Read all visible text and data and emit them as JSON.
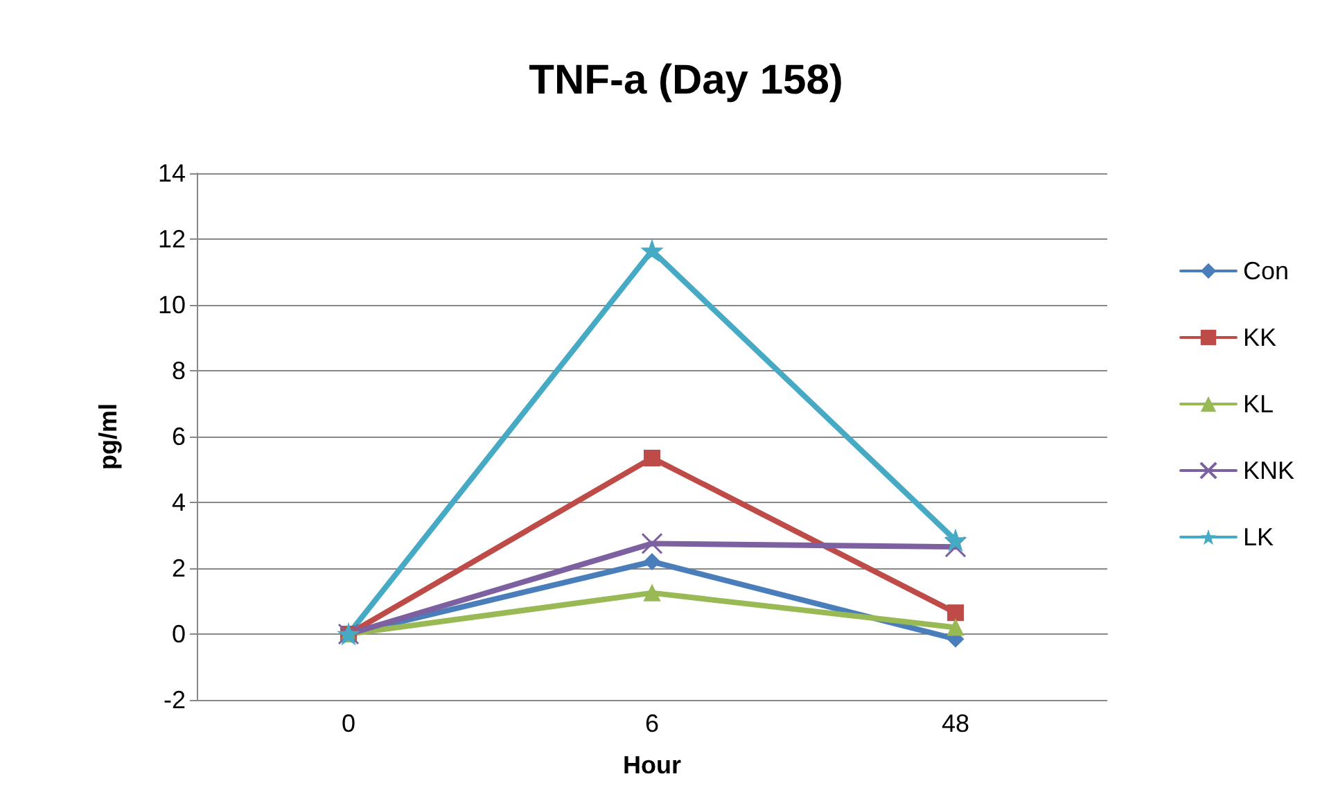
{
  "chart_data": {
    "type": "line",
    "title": "TNF-a (Day 158)",
    "xlabel": "Hour",
    "ylabel": "pg/ml",
    "categories": [
      "0",
      "6",
      "48"
    ],
    "series": [
      {
        "name": "Con",
        "color": "#4a7ebb",
        "marker": "diamond",
        "values": [
          0,
          2.2,
          -0.15
        ]
      },
      {
        "name": "KK",
        "color": "#be4b48",
        "marker": "square",
        "values": [
          0,
          5.35,
          0.65
        ]
      },
      {
        "name": "KL",
        "color": "#98b954",
        "marker": "triangle",
        "values": [
          0,
          1.25,
          0.2
        ]
      },
      {
        "name": "KNK",
        "color": "#7d60a0",
        "marker": "cross",
        "values": [
          0,
          2.75,
          2.65
        ]
      },
      {
        "name": "LK",
        "color": "#46aac5",
        "marker": "star",
        "values": [
          0,
          11.65,
          2.85
        ]
      }
    ],
    "ylim": [
      -2,
      14
    ],
    "yticks": [
      -2,
      0,
      2,
      4,
      6,
      8,
      10,
      12,
      14
    ],
    "grid": "y",
    "legend": "right"
  }
}
